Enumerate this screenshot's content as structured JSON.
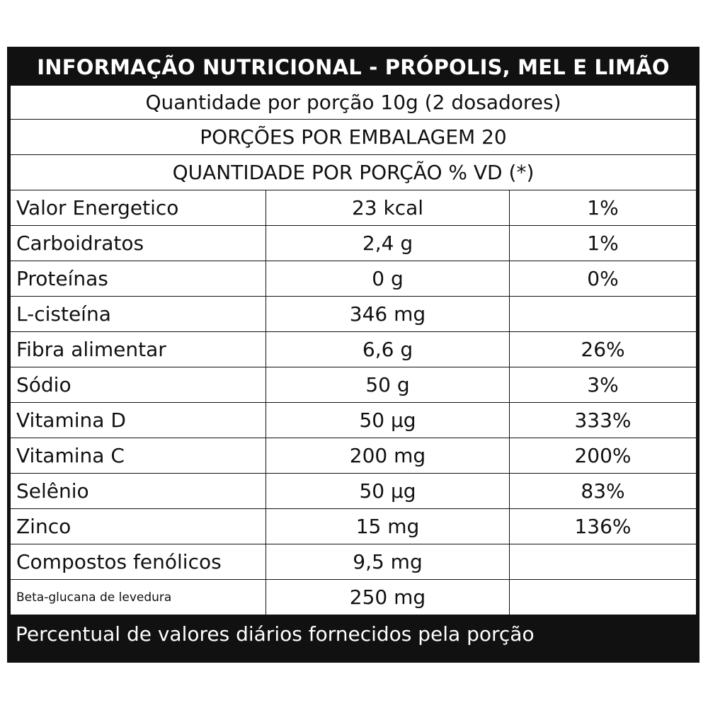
{
  "header": {
    "title": "INFORMAÇÃO NUTRICIONAL - PRÓPOLIS, MEL E LIMÃO"
  },
  "info": {
    "serving": "Quantidade por porção 10g (2 dosadores)",
    "servings_per_package": "PORÇÕES POR EMBALAGEM 20",
    "column_header": "QUANTIDADE POR PORÇÃO % VD (*)"
  },
  "nutrients": [
    {
      "name": "Valor Energetico",
      "amount": "23 kcal",
      "vd": "1%"
    },
    {
      "name": "Carboidratos",
      "amount": "2,4 g",
      "vd": "1%"
    },
    {
      "name": "Proteínas",
      "amount": "0 g",
      "vd": "0%"
    },
    {
      "name": "L-cisteína",
      "amount": "346 mg",
      "vd": ""
    },
    {
      "name": "Fibra alimentar",
      "amount": "6,6 g",
      "vd": "26%"
    },
    {
      "name": "Sódio",
      "amount": "50 g",
      "vd": "3%"
    },
    {
      "name": "Vitamina D",
      "amount": "50 µg",
      "vd": "333%"
    },
    {
      "name": "Vitamina C",
      "amount": "200 mg",
      "vd": "200%"
    },
    {
      "name": "Selênio",
      "amount": "50 µg",
      "vd": "83%"
    },
    {
      "name": "Zinco",
      "amount": "15 mg",
      "vd": "136%"
    },
    {
      "name": "Compostos fenólicos",
      "amount": "9,5 mg",
      "vd": ""
    },
    {
      "name": "Beta-glucana de levedura",
      "amount": "250 mg",
      "vd": ""
    }
  ],
  "footer": {
    "note": "Percentual de valores diários fornecidos pela porção"
  }
}
